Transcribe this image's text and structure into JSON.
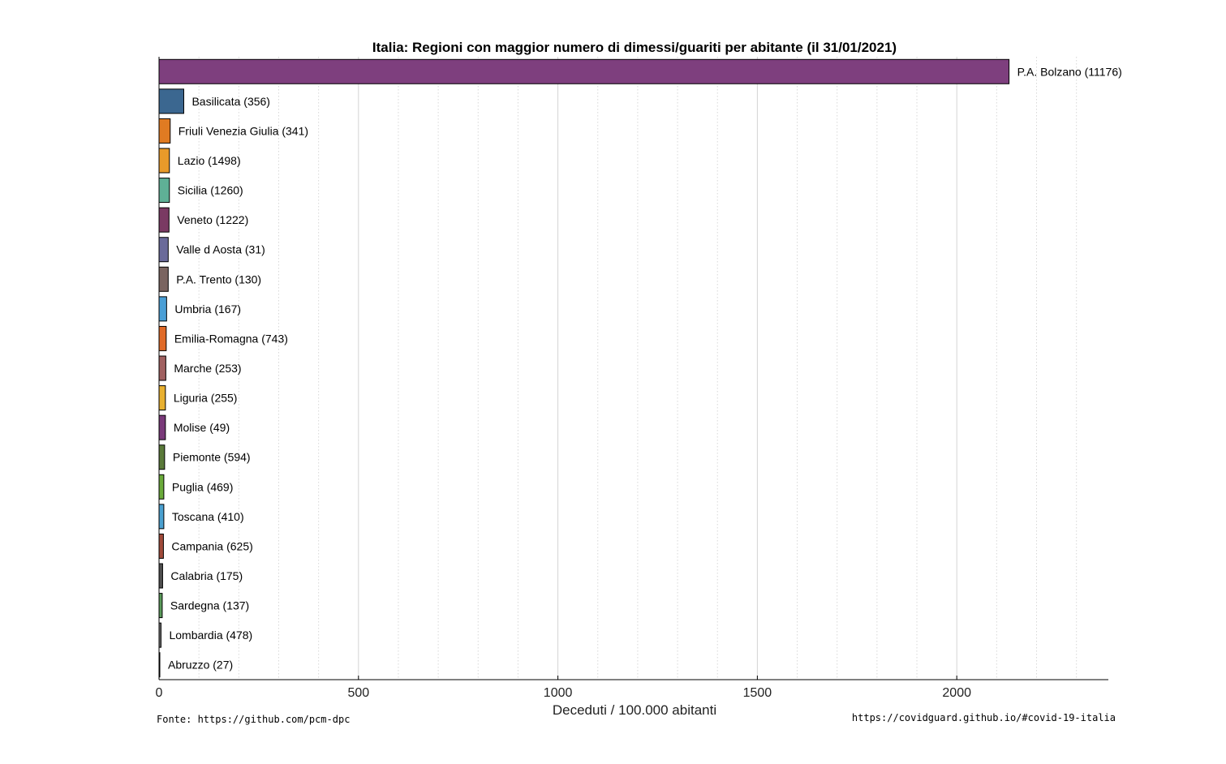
{
  "chart_data": {
    "type": "bar",
    "orientation": "horizontal",
    "title": "Italia: Regioni con maggior numero di dimessi/guariti per abitante (il 31/01/2021)",
    "xlabel": "Deceduti / 100.000 abitanti",
    "xlim": [
      0,
      2380
    ],
    "xticks": [
      0,
      500,
      1000,
      1500,
      2000
    ],
    "minor_step": 100,
    "grid": true,
    "categories": [
      "P.A. Bolzano (11176)",
      "Basilicata (356)",
      "Friuli Venezia Giulia (341)",
      "Lazio (1498)",
      "Sicilia (1260)",
      "Veneto (1222)",
      "Valle d Aosta (31)",
      "P.A. Trento (130)",
      "Umbria (167)",
      "Emilia-Romagna (743)",
      "Marche (253)",
      "Liguria (255)",
      "Molise (49)",
      "Piemonte (594)",
      "Puglia (469)",
      "Toscana (410)",
      "Campania (625)",
      "Calabria (175)",
      "Sardegna (137)",
      "Lombardia (478)",
      "Abruzzo (27)"
    ],
    "values": [
      2131,
      62,
      28,
      26,
      26,
      25,
      23,
      23,
      19,
      18,
      17,
      16,
      16,
      14,
      12,
      12,
      11,
      9,
      8,
      5,
      2
    ],
    "colors": [
      "#7e3f7e",
      "#3b6790",
      "#e07b22",
      "#e89a2a",
      "#5fb096",
      "#7a3a63",
      "#6a6a9a",
      "#7a6460",
      "#4a9fd6",
      "#e06a28",
      "#a06060",
      "#e8b030",
      "#7a3a7a",
      "#5a7a3a",
      "#6aaa3a",
      "#4aa0d0",
      "#a04a3a",
      "#505050",
      "#5a9a5a",
      "#707070",
      "#303030"
    ]
  },
  "footer": {
    "left": "Fonte: https://github.com/pcm-dpc",
    "right": "https://covidguard.github.io/#covid-19-italia"
  }
}
